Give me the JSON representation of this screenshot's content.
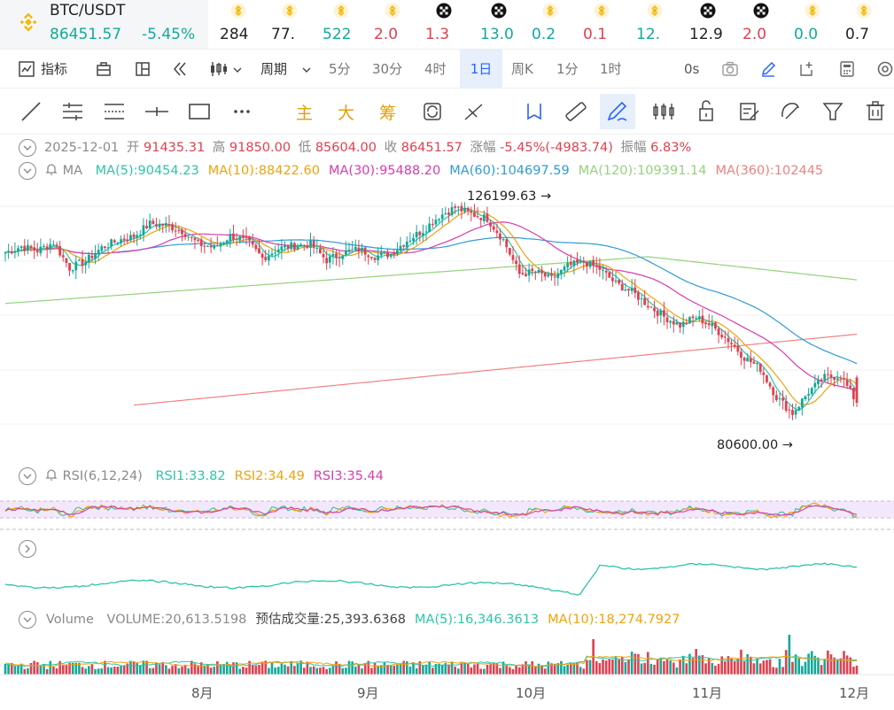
{
  "ticker": {
    "symbol": "BTC/USDT",
    "price": "86451.57",
    "change": "-5.45%",
    "others": [
      {
        "value": "284",
        "color": "#222222",
        "icon": "binance-icon"
      },
      {
        "value": "77.",
        "color": "#222222",
        "icon": "binance-icon"
      },
      {
        "value": "522",
        "color": "#13a899",
        "icon": "binance-icon"
      },
      {
        "value": "2.0",
        "color": "#e0404f",
        "icon": "binance-icon"
      },
      {
        "value": "1.3",
        "color": "#e0404f",
        "icon": "okx-icon"
      },
      {
        "value": "13.0",
        "color": "#13a899",
        "icon": "okx-icon"
      },
      {
        "value": "0.2",
        "color": "#13a899",
        "icon": "binance-icon"
      },
      {
        "value": "0.1",
        "color": "#e0404f",
        "icon": "binance-icon"
      },
      {
        "value": "12.",
        "color": "#13a899",
        "icon": "binance-icon"
      },
      {
        "value": "12.9",
        "color": "#222222",
        "icon": "okx-icon"
      },
      {
        "value": "2.0",
        "color": "#e0404f",
        "icon": "okx-icon"
      },
      {
        "value": "0.0",
        "color": "#13a899",
        "icon": "binance-icon"
      },
      {
        "value": "0.7",
        "color": "#222222",
        "icon": "binance-icon"
      }
    ]
  },
  "toolbar": {
    "indicators": "指标",
    "period": "周期",
    "intervals": [
      "5分",
      "30分",
      "4时",
      "1日",
      "周K",
      "1分",
      "1时"
    ],
    "selected_interval": "1日",
    "countdown": "0s"
  },
  "drawing_tools": {
    "labels": [
      "主",
      "大",
      "筹"
    ]
  },
  "ohlc": {
    "date": "2025-12-01",
    "open_label": "开",
    "open": "91435.31",
    "high_label": "高",
    "high": "91850.00",
    "low_label": "低",
    "low": "85604.00",
    "close_label": "收",
    "close": "86451.57",
    "change_label": "涨幅",
    "change": "-5.45%(-4983.74)",
    "amplitude_label": "振幅",
    "amplitude": "6.83%"
  },
  "ma": {
    "label": "MA",
    "items": [
      {
        "text": "MA(5):90454.23",
        "color": "#2ec4a6"
      },
      {
        "text": "MA(10):88422.60",
        "color": "#f0a20b"
      },
      {
        "text": "MA(30):95488.20",
        "color": "#d63cb1"
      },
      {
        "text": "MA(60):104697.59",
        "color": "#2f9bd6"
      },
      {
        "text": "MA(120):109391.14",
        "color": "#94d17c"
      },
      {
        "text": "MA(360):102445",
        "color": "#f08080"
      }
    ]
  },
  "annotations": {
    "high": "126199.63",
    "low": "80600.00"
  },
  "rsi": {
    "label": "RSI(6,12,24)",
    "items": [
      {
        "text": "RSI1:33.82",
        "color": "#2ec4a6"
      },
      {
        "text": "RSI2:34.49",
        "color": "#f0a20b"
      },
      {
        "text": "RSI3:35.44",
        "color": "#d63cb1"
      }
    ]
  },
  "volume": {
    "label": "Volume",
    "items": [
      {
        "text": "VOLUME:20,613.5198",
        "color": "#8a8a8a"
      },
      {
        "text": "预估成交量:25,393.6368",
        "color": "#444444"
      },
      {
        "text": "MA(5):16,346.3613",
        "color": "#2ec4a6"
      },
      {
        "text": "MA(10):18,274.7927",
        "color": "#f0a20b"
      }
    ]
  },
  "months": [
    "8月",
    "9月",
    "10月",
    "11月",
    "12月"
  ],
  "chart_data": {
    "type": "candlestick",
    "symbol": "BTC/USDT",
    "interval": "1D",
    "highest": 126199.63,
    "lowest": 80600.0,
    "last": {
      "date": "2025-12-01",
      "open": 91435.31,
      "high": 91850.0,
      "low": 85604.0,
      "close": 86451.57
    },
    "ma_last": {
      "MA5": 90454.23,
      "MA10": 88422.6,
      "MA30": 95488.2,
      "MA60": 104697.59,
      "MA120": 109391.14,
      "MA360": 102445
    },
    "close_path": [
      [
        0,
        116000
      ],
      [
        5,
        117200
      ],
      [
        10,
        116400
      ],
      [
        15,
        118000
      ],
      [
        20,
        113000
      ],
      [
        25,
        114300
      ],
      [
        30,
        117000
      ],
      [
        35,
        118400
      ],
      [
        40,
        119200
      ],
      [
        45,
        121700
      ],
      [
        50,
        121400
      ],
      [
        55,
        120300
      ],
      [
        60,
        117700
      ],
      [
        65,
        117000
      ],
      [
        70,
        119300
      ],
      [
        75,
        118400
      ],
      [
        80,
        114900
      ],
      [
        85,
        116800
      ],
      [
        90,
        117400
      ],
      [
        95,
        117600
      ],
      [
        100,
        114500
      ],
      [
        105,
        116000
      ],
      [
        110,
        116700
      ],
      [
        115,
        115300
      ],
      [
        120,
        115800
      ],
      [
        125,
        118400
      ],
      [
        130,
        120400
      ],
      [
        135,
        123200
      ],
      [
        140,
        124900
      ],
      [
        145,
        123600
      ],
      [
        150,
        122700
      ],
      [
        155,
        118500
      ],
      [
        160,
        111800
      ],
      [
        165,
        112200
      ],
      [
        170,
        110800
      ],
      [
        175,
        113300
      ],
      [
        180,
        114200
      ],
      [
        185,
        112800
      ],
      [
        190,
        109900
      ],
      [
        195,
        108300
      ],
      [
        200,
        105700
      ],
      [
        205,
        103400
      ],
      [
        210,
        101700
      ],
      [
        215,
        103300
      ],
      [
        220,
        101500
      ],
      [
        225,
        98800
      ],
      [
        230,
        95400
      ],
      [
        235,
        93200
      ],
      [
        240,
        87600
      ],
      [
        245,
        84400
      ],
      [
        250,
        88600
      ],
      [
        255,
        91400
      ],
      [
        260,
        91800
      ],
      [
        265,
        86451
      ]
    ],
    "rsi_last": {
      "RSI1": 33.82,
      "RSI2": 34.49,
      "RSI3": 35.44
    },
    "volume_last": 20613.5198,
    "volume_ma": {
      "MA5": 16346.3613,
      "MA10": 18274.7927
    },
    "x_labels": [
      "8月",
      "9月",
      "10月",
      "11月",
      "12月"
    ]
  }
}
